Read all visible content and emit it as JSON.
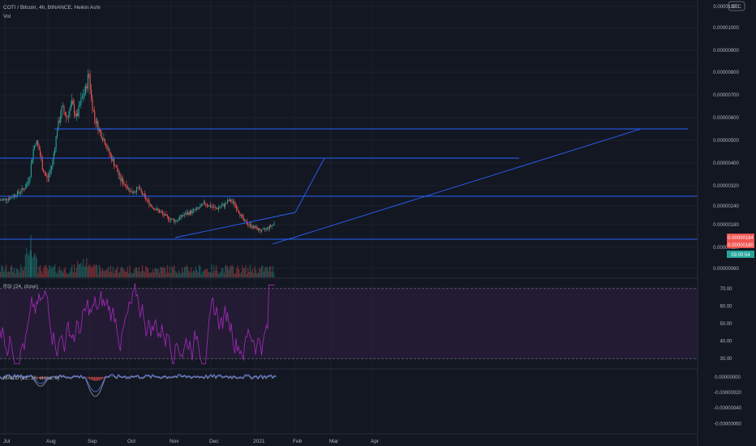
{
  "header": {
    "title": "COTI / Bitcoin, 4h, BINANCE, Heikin Ashi",
    "vol_label": "Vol",
    "currency_badge": "BTC"
  },
  "colors": {
    "background": "#131722",
    "grid": "#1e222d",
    "up": "#26a69a",
    "down": "#ef5350",
    "trendline": "#2962ff",
    "rsi_line": "#9c27b0",
    "rsi_band": "#2a1e3a",
    "macd_line": "#7b8ca6",
    "signal_line": "#5f6fd6",
    "text": "#b2b5be"
  },
  "chart_data": [
    {
      "type": "candlestick",
      "pane": "price",
      "title": "COTI / Bitcoin, 4h, BINANCE, Heikin Ashi",
      "x_ticks": [
        "Jul",
        "Aug",
        "Sep",
        "Oct",
        "Nov",
        "Dec",
        "2021",
        "Feb",
        "Mar",
        "Apr"
      ],
      "y_ticks": [
        "0.00001100",
        "0.00001000",
        "0.00000900",
        "0.00000800",
        "0.00000700",
        "0.00000600",
        "0.00000500",
        "0.00000400",
        "0.00000320",
        "0.00000240",
        "0.00000180",
        "0.00000120",
        "0.00000060"
      ],
      "y_scale": "log",
      "price_labels": [
        {
          "text": "0.00000184",
          "color": "#ef5350"
        },
        {
          "text": "0.00000180",
          "color": "#ef5350"
        },
        {
          "text": "03:00:54",
          "color": "#26a69a"
        }
      ],
      "series": [
        {
          "name": "price",
          "x": [
            0,
            0.05,
            0.1,
            0.15,
            0.2,
            0.25,
            0.3,
            0.33,
            0.36,
            0.4,
            0.45,
            0.5,
            0.55,
            0.6,
            0.65,
            0.7,
            0.75,
            0.8,
            0.85,
            0.88,
            0.9,
            0.95,
            1.0
          ],
          "y": [
            2.9e-06,
            3.3e-06,
            3.5e-06,
            3.2e-06,
            4.4e-06,
            5e-06,
            4.7e-06,
            4e-06,
            3.8e-06,
            5e-06,
            6.6e-06,
            6.9e-06,
            7.3e-06,
            6.2e-06,
            6e-06,
            6.3e-06,
            7e-06,
            7.8e-06,
            6.6e-06,
            5.8e-06,
            5e-06,
            4.5e-06,
            4.2e-06
          ]
        }
      ]
    },
    {
      "type": "bar",
      "pane": "volume",
      "title": "Vol"
    },
    {
      "type": "line",
      "pane": "rsi",
      "title": "RSI (24, close)",
      "y_ticks": [
        "70.00",
        "60.00",
        "50.00",
        "40.00",
        "30.00"
      ],
      "ylim": [
        25,
        75
      ],
      "levels": [
        70,
        30
      ]
    },
    {
      "type": "line",
      "pane": "macd",
      "title": "MACD (12, 26, close, 9)",
      "y_ticks": [
        "0.00000000",
        "-0.00000020",
        "-0.00000040",
        "-0.00000060"
      ],
      "ylim": [
        -7e-07,
        5e-08
      ]
    }
  ]
}
